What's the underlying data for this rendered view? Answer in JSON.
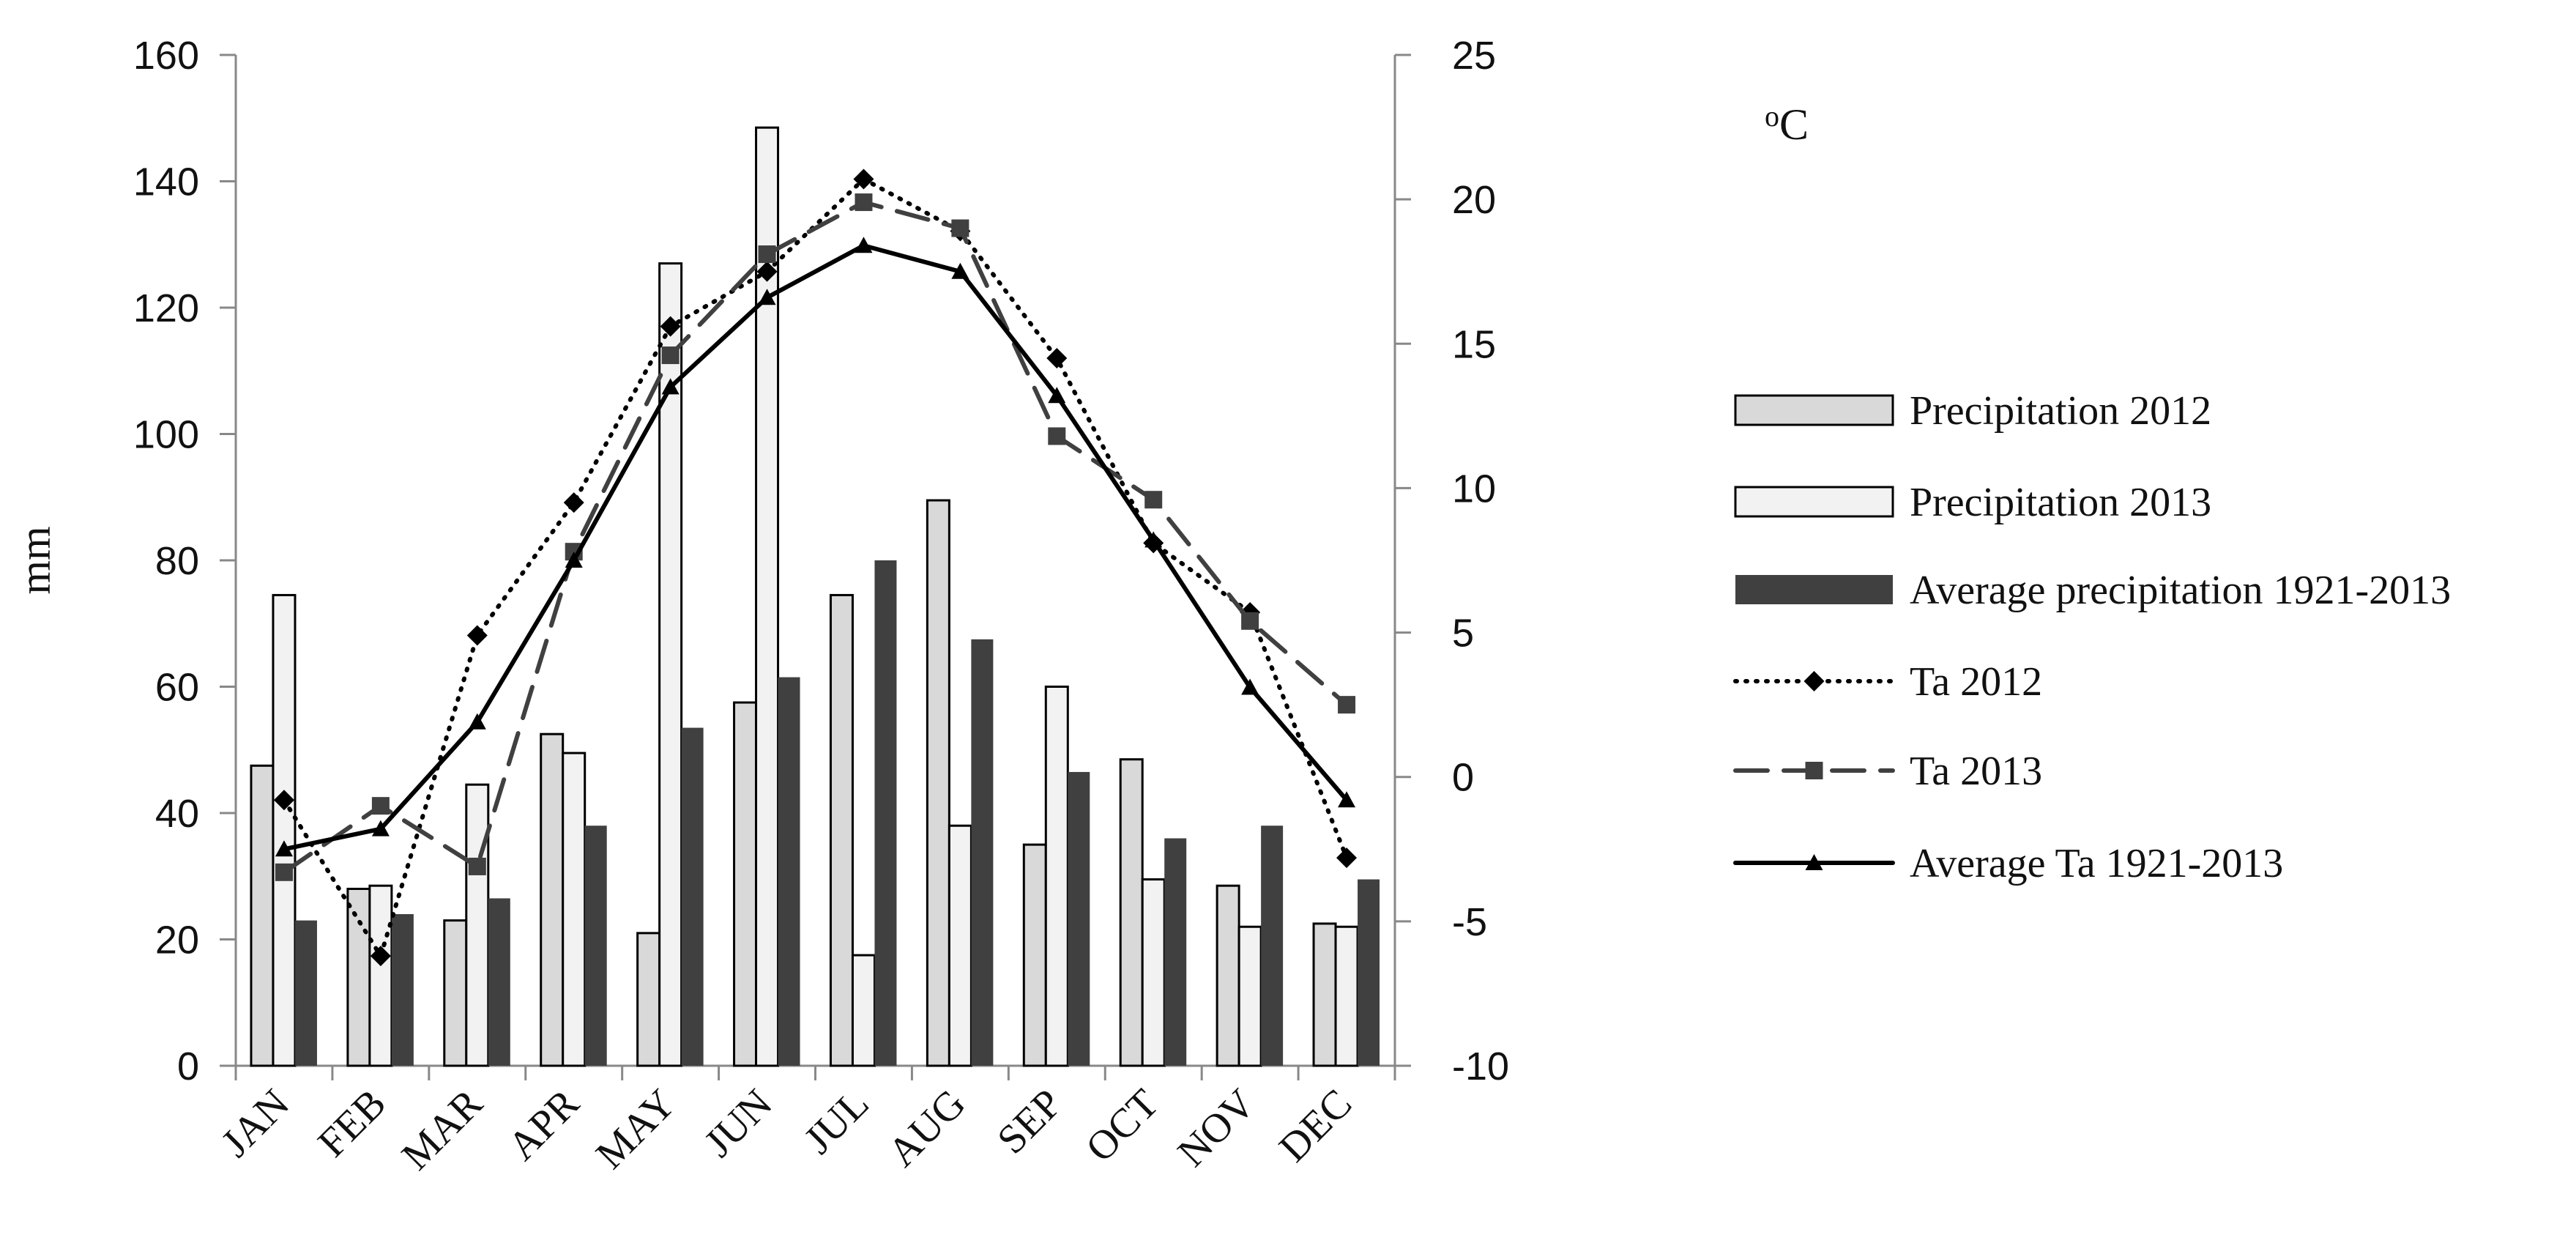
{
  "chart_data": {
    "type": "bar+line",
    "title": "",
    "categories": [
      "JAN",
      "FEB",
      "MAR",
      "APR",
      "MAY",
      "JUN",
      "JUL",
      "AUG",
      "SEP",
      "OCT",
      "NOV",
      "DEC"
    ],
    "left_axis": {
      "label": "mm",
      "min": 0,
      "max": 160,
      "ticks": [
        "0",
        "20",
        "40",
        "60",
        "80",
        "100",
        "120",
        "140",
        "160"
      ]
    },
    "right_axis": {
      "label": "oC",
      "label_base": "o",
      "label_suffix": "C",
      "min": -10,
      "max": 25,
      "ticks": [
        "-10",
        "-5",
        "0",
        "5",
        "10",
        "15",
        "20",
        "25"
      ]
    },
    "bar_series": [
      {
        "name": "Precipitation 2012",
        "color": "#d9d9d9",
        "stroke": "#000000",
        "values": [
          47.5,
          28,
          23,
          52.5,
          21,
          57.5,
          74.5,
          89.5,
          35,
          48.5,
          28.5,
          22.5
        ]
      },
      {
        "name": "Precipitation 2013",
        "color": "#f2f2f2",
        "stroke": "#000000",
        "values": [
          74.5,
          28.5,
          44.5,
          49.5,
          127,
          148.5,
          17.5,
          38,
          60,
          29.5,
          22,
          22
        ]
      },
      {
        "name": "Average precipitation 1921-2013",
        "color": "#404040",
        "stroke": "#404040",
        "values": [
          23,
          24,
          26.5,
          38,
          53.5,
          61.5,
          80,
          67.5,
          46.5,
          36,
          38,
          29.5
        ]
      }
    ],
    "line_series": [
      {
        "name": "Ta 2012",
        "style": "dotted",
        "marker": "diamond",
        "color": "#000000",
        "values": [
          -0.8,
          -6.2,
          4.9,
          9.5,
          15.6,
          17.5,
          20.7,
          18.9,
          14.5,
          8.1,
          5.7,
          -2.8
        ]
      },
      {
        "name": "Ta 2013",
        "style": "dashed",
        "marker": "square",
        "color": "#404040",
        "values": [
          -3.3,
          -1.0,
          -3.1,
          7.8,
          14.6,
          18.1,
          19.9,
          19.0,
          11.8,
          9.6,
          5.4,
          2.5
        ]
      },
      {
        "name": "Average Ta 1921-2013",
        "style": "solid",
        "marker": "triangle",
        "color": "#000000",
        "values": [
          -2.5,
          -1.8,
          1.9,
          7.5,
          13.5,
          16.6,
          18.4,
          17.5,
          13.2,
          8.2,
          3.1,
          -0.8
        ]
      }
    ],
    "legend": {
      "position": "right",
      "entries": [
        "Precipitation 2012",
        "Precipitation 2013",
        "Average precipitation 1921-2013",
        "Ta 2012",
        "Ta 2013",
        "Average Ta 1921-2013"
      ]
    },
    "grid": false
  }
}
